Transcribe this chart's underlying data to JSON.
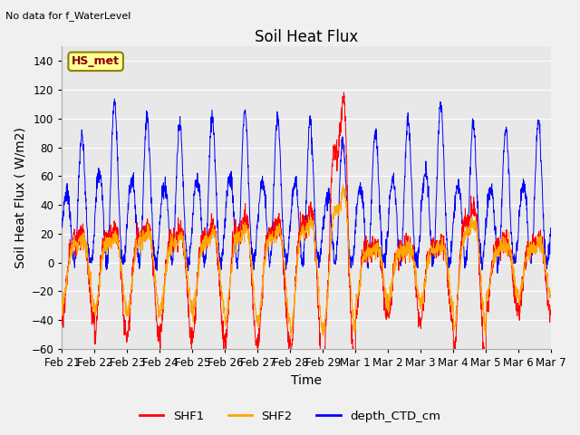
{
  "title": "Soil Heat Flux",
  "subtitle": "No data for f_WaterLevel",
  "xlabel": "Time",
  "ylabel": "Soil Heat Flux ( W/m2)",
  "ylim": [
    -60,
    150
  ],
  "yticks": [
    -60,
    -40,
    -20,
    0,
    20,
    40,
    60,
    80,
    100,
    120,
    140
  ],
  "x_tick_labels": [
    "Feb 21",
    "Feb 22",
    "Feb 23",
    "Feb 24",
    "Feb 25",
    "Feb 26",
    "Feb 27",
    "Feb 28",
    "Feb 29",
    "Mar 1",
    "Mar 2",
    "Mar 3",
    "Mar 4",
    "Mar 5",
    "Mar 6",
    "Mar 7"
  ],
  "legend_labels": [
    "SHF1",
    "SHF2",
    "depth_CTD_cm"
  ],
  "shf1_color": "#ff0000",
  "shf2_color": "#ffa500",
  "ctd_color": "#0000ff",
  "box_label": "HS_met",
  "box_facecolor": "#ffff99",
  "box_edgecolor": "#8B8000",
  "plot_bg": "#e8e8e8",
  "fig_bg": "#f0f0f0",
  "grid_color": "#ffffff",
  "title_fontsize": 12,
  "label_fontsize": 10,
  "tick_fontsize": 8.5,
  "n_days": 15,
  "n_per_day": 144
}
